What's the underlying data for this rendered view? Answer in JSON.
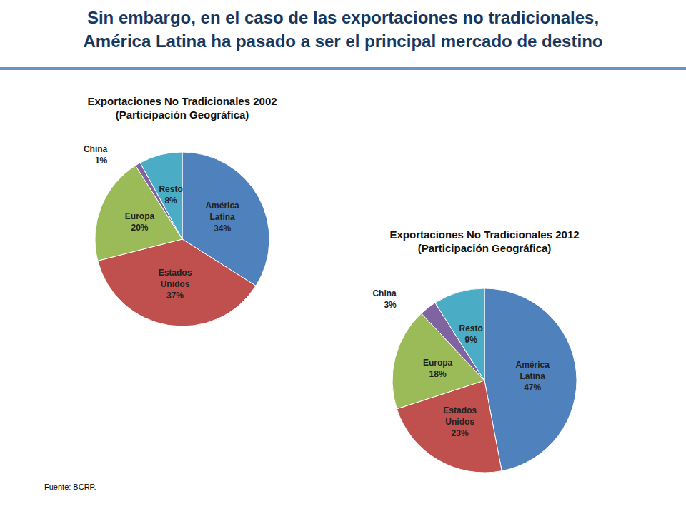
{
  "header": {
    "title_lines": [
      "Sin embargo, en el caso de las exportaciones no tradicionales,",
      "América Latina ha pasado a ser el principal mercado de destino"
    ]
  },
  "chart_data": [
    {
      "type": "pie",
      "title": "Exportaciones No Tradicionales 2002",
      "subtitle": "(Participación Geográfica)",
      "categories": [
        "América Latina",
        "Estados Unidos",
        "Europa",
        "China",
        "Resto"
      ],
      "values": [
        34,
        37,
        20,
        1,
        8
      ],
      "value_labels": [
        "34%",
        "37%",
        "20%",
        "1%",
        "8%"
      ],
      "colors": [
        "#4f81bd",
        "#c0504d",
        "#9bbb59",
        "#8064a2",
        "#4bacc6"
      ],
      "data_labels": true
    },
    {
      "type": "pie",
      "title": "Exportaciones No Tradicionales 2012",
      "subtitle": "(Participación Geográfica)",
      "categories": [
        "América Latina",
        "Estados Unidos",
        "Europa",
        "China",
        "Resto"
      ],
      "values": [
        47,
        23,
        18,
        3,
        9
      ],
      "value_labels": [
        "47%",
        "23%",
        "18%",
        "3%",
        "9%"
      ],
      "colors": [
        "#4f81bd",
        "#c0504d",
        "#9bbb59",
        "#8064a2",
        "#4bacc6"
      ],
      "data_labels": true
    }
  ],
  "source": "Fuente: BCRP."
}
